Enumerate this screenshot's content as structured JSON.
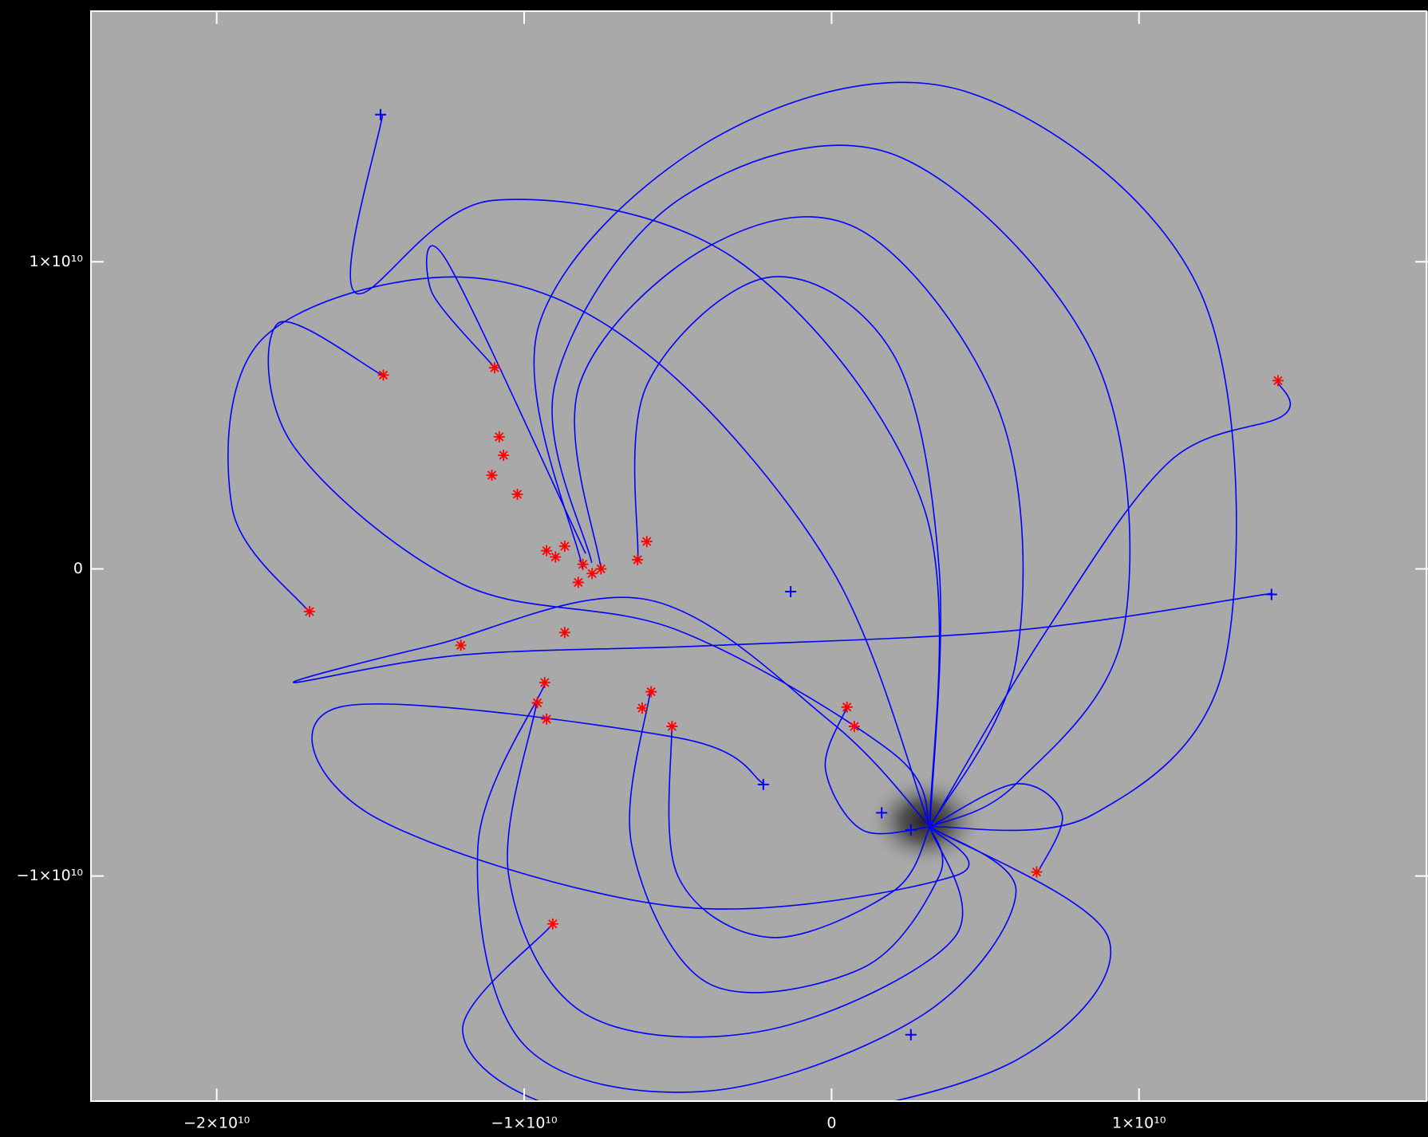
{
  "chart_data": {
    "type": "field-lines",
    "xlim": [
      -24090000000.0,
      19400000000.0
    ],
    "ylim": [
      -17330000000.0,
      18160000000.0
    ],
    "xticks": [
      {
        "value": -20000000000.0,
        "label": "−2×10¹⁰"
      },
      {
        "value": -10000000000.0,
        "label": "−1×10¹⁰"
      },
      0,
      {
        "value": 10000000000.0,
        "label": "1×10¹⁰"
      }
    ],
    "yticks": [
      {
        "value": -10000000000.0,
        "label": "−1×10¹⁰"
      },
      0,
      {
        "value": 10000000000.0,
        "label": "1×10¹⁰"
      }
    ],
    "line_color": "#0000ff",
    "footpoint_color": "#ff0000",
    "field_lines": [
      {
        "x": [
          -8100000000.0,
          -9500000000.0,
          -3500000000.0,
          4500000000.0,
          12000000000.0,
          12800000000.0,
          8500000000.0,
          3200000000.0
        ],
        "y": [
          0.0,
          8000000000.0,
          14200000000.0,
          15500000000.0,
          9000000000.0,
          -3000000000.0,
          -8000000000.0,
          -8400000000.0
        ]
      },
      {
        "x": [
          -7800000000.0,
          -9000000000.0,
          -5000000000.0,
          2000000000.0,
          8500000000.0,
          9500000000.0,
          6000000000.0,
          3200000000.0
        ],
        "y": [
          200000000.0,
          6000000000.0,
          12000000000.0,
          13500000000.0,
          7000000000.0,
          -2000000000.0,
          -7000000000.0,
          -8400000000.0
        ]
      },
      {
        "x": [
          -7500000000.0,
          -8200000000.0,
          -4000000000.0,
          1000000000.0,
          5500000000.0,
          6000000000.0,
          3200000000.0
        ],
        "y": [
          0.0,
          6000000000.0,
          10500000000.0,
          11000000000.0,
          5000000000.0,
          -3000000000.0,
          -8400000000.0
        ]
      },
      {
        "x": [
          -6300000000.0,
          -6000000000.0,
          -2000000000.0,
          2000000000.0,
          3500000000.0,
          3200000000.0
        ],
        "y": [
          300000000.0,
          6000000000.0,
          9500000000.0,
          7000000000.0,
          0.0,
          -8400000000.0
        ]
      },
      {
        "x": [
          -14600000000.0,
          -15500000000.0,
          -11000000000.0,
          -3000000000.0,
          3000000000.0,
          3200000000.0
        ],
        "y": [
          14800000000.0,
          9000000000.0,
          12000000000.0,
          10000000000.0,
          2000000000.0,
          -8400000000.0
        ]
      },
      {
        "x": [
          -17000000000.0,
          -19500000000.0,
          -18500000000.0,
          -12000000000.0,
          -6000000000.0,
          0.0,
          3200000000.0
        ],
        "y": [
          -1400000000.0,
          2000000000.0,
          7500000000.0,
          9500000000.0,
          7000000000.0,
          0.0,
          -8400000000.0
        ]
      },
      {
        "x": [
          -14600000000.0,
          -18000000000.0,
          -17500000000.0,
          -12000000000.0,
          -5000000000.0,
          2000000000.0,
          3200000000.0
        ],
        "y": [
          6300000000.0,
          8000000000.0,
          4000000000.0,
          -500000000.0,
          -2000000000.0,
          -6000000000.0,
          -8400000000.0
        ]
      },
      {
        "x": [
          -9300000000.0,
          -11500000000.0,
          -10000000000.0,
          -4000000000.0,
          3000000000.0,
          6000000000.0,
          3200000000.0
        ],
        "y": [
          -3700000000.0,
          -9000000000.0,
          -15500000000.0,
          -17000000000.0,
          -14500000000.0,
          -10500000000.0,
          -8400000000.0
        ]
      },
      {
        "x": [
          -9600000000.0,
          -10500000000.0,
          -8000000000.0,
          -2000000000.0,
          4000000000.0,
          3200000000.0
        ],
        "y": [
          -4400000000.0,
          -10000000000.0,
          -14500000000.0,
          -15000000000.0,
          -12000000000.0,
          -8400000000.0
        ]
      },
      {
        "x": [
          -5900000000.0,
          -6500000000.0,
          -4000000000.0,
          1000000000.0,
          3500000000.0,
          3200000000.0
        ],
        "y": [
          -4000000000.0,
          -9000000000.0,
          -13500000000.0,
          -13000000000.0,
          -10000000000.0,
          -8400000000.0
        ]
      },
      {
        "x": [
          -5200000000.0,
          -5000000000.0,
          -2000000000.0,
          2000000000.0,
          3200000000.0
        ],
        "y": [
          -5100000000.0,
          -10000000000.0,
          -12000000000.0,
          -10500000000.0,
          -8400000000.0
        ]
      },
      {
        "x": [
          14500000000.0,
          14700000000.0,
          11000000000.0,
          7000000000.0,
          3200000000.0
        ],
        "y": [
          6100000000.0,
          5000000000.0,
          3500000000.0,
          -2000000000.0,
          -8400000000.0
        ]
      },
      {
        "x": [
          14300000000.0,
          6000000000.0,
          -4000000000.0,
          -12000000000.0,
          -17500000000.0,
          -13000000000.0,
          -6000000000.0,
          0.0,
          3200000000.0
        ],
        "y": [
          -800000000.0,
          -2000000000.0,
          -2500000000.0,
          -2800000000.0,
          -3700000000.0,
          -2500000000.0,
          -1000000000.0,
          -5000000000.0,
          -8400000000.0
        ]
      },
      {
        "x": [
          6700000000.0,
          7500000000.0,
          6000000000.0,
          3200000000.0
        ],
        "y": [
          -9900000000.0,
          -8000000000.0,
          -7000000000.0,
          -8400000000.0
        ]
      },
      {
        "x": [
          -2200000000.0,
          -5000000000.0,
          -16000000000.0,
          -15000000000.0,
          -5000000000.0,
          4000000000.0,
          3200000000.0
        ],
        "y": [
          -7000000000.0,
          -5500000000.0,
          -4500000000.0,
          -8000000000.0,
          -11000000000.0,
          -10000000000.0,
          -8400000000.0
        ]
      },
      {
        "x": [
          -9100000000.0,
          -12000000000.0,
          -9000000000.0,
          -2000000000.0,
          6000000000.0,
          9000000000.0,
          3200000000.0
        ],
        "y": [
          -11600000000.0,
          -15000000000.0,
          -17500000000.0,
          -18000000000.0,
          -16000000000.0,
          -12000000000.0,
          -8400000000.0
        ]
      },
      {
        "x": [
          500000000.0,
          -200000000.0,
          1000000000.0,
          3200000000.0
        ],
        "y": [
          -4500000000.0,
          -6500000000.0,
          -8500000000.0,
          -8400000000.0
        ]
      },
      {
        "x": [
          -11000000000.0,
          -13000000000.0,
          -12500000000.0,
          -8000000000.0
        ],
        "y": [
          6600000000.0,
          9000000000.0,
          10000000000.0,
          500000000.0
        ]
      }
    ],
    "footpoints": {
      "x": [
        -16980000000.0,
        -14580000000.0,
        -10960000000.0,
        -12060000000.0,
        -10810000000.0,
        -10670000000.0,
        -11050000000.0,
        -10220000000.0,
        -9270000000.0,
        -8980000000.0,
        -8680000000.0,
        -8090000000.0,
        -7790000000.0,
        -7500000000.0,
        -6310000000.0,
        -6010000000.0,
        -8680000000.0,
        -9330000000.0,
        -9570000000.0,
        -9270000000.0,
        -5870000000.0,
        -6160000000.0,
        -5190000000.0,
        500000000.0,
        740000000.0,
        6670000000.0,
        -9070000000.0,
        14520000000.0,
        -8240000000.0
      ],
      "y": [
        -1390000000.0,
        6310000000.0,
        6550000000.0,
        -2490000000.0,
        4300000000.0,
        3700000000.0,
        3050000000.0,
        2430000000.0,
        590000000.0,
        390000000.0,
        740000000.0,
        150000000.0,
        -150000000.0,
        0.0,
        300000000.0,
        890000000.0,
        -2070000000.0,
        -3700000000.0,
        -4360000000.0,
        -4890000000.0,
        -4000000000.0,
        -4530000000.0,
        -5130000000.0,
        -4500000000.0,
        -5130000000.0,
        -9870000000.0,
        -11560000000.0,
        6130000000.0,
        -440000000.0
      ]
    },
    "endpoints": {
      "x": [
        -14670000000.0,
        14310000000.0,
        -2220000000.0,
        1630000000.0,
        2580000000.0,
        -1330000000.0,
        2580000000.0
      ],
      "y": [
        14790000000.0,
        -830000000.0,
        -7020000000.0,
        -7940000000.0,
        -15170000000.0,
        -740000000.0,
        -8500000000.0
      ]
    }
  }
}
